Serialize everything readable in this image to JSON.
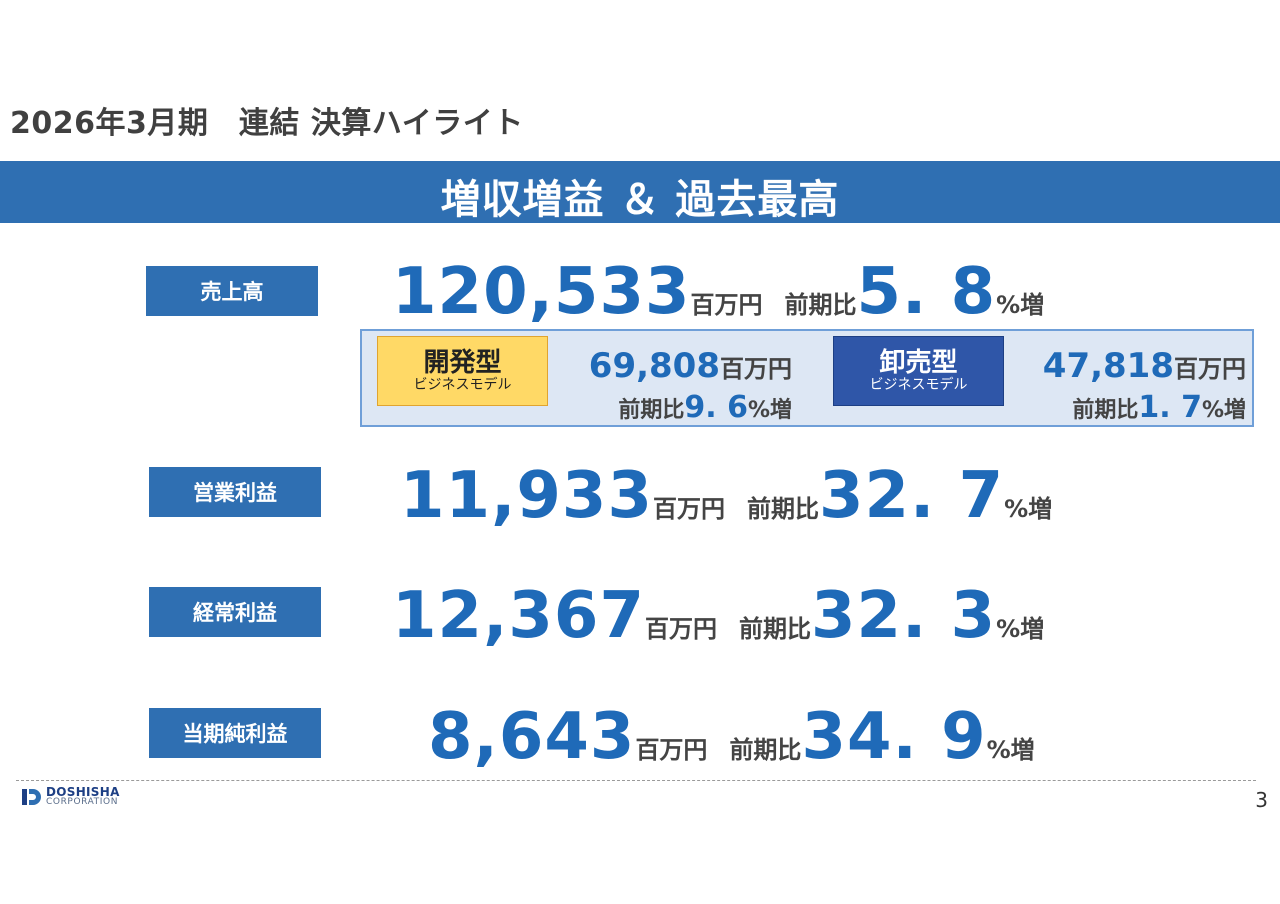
{
  "page_title": "2026年3月期　連結 決算ハイライト",
  "banner": "増収増益 ＆ 過去最高",
  "metrics": [
    {
      "label": "売上高",
      "value": "120,533",
      "unit": "百万円",
      "cmp_label": "前期比",
      "pct": "5. 8",
      "suffix": "%増"
    },
    {
      "label": "営業利益",
      "value": "11,933",
      "unit": "百万円",
      "cmp_label": "前期比",
      "pct": "32. 7",
      "suffix": "%増"
    },
    {
      "label": "経常利益",
      "value": "12,367",
      "unit": "百万円",
      "cmp_label": "前期比",
      "pct": "32. 3",
      "suffix": "%増"
    },
    {
      "label": "当期純利益",
      "value": "8,643",
      "unit": "百万円",
      "cmp_label": "前期比",
      "pct": "34. 9",
      "suffix": "%増"
    }
  ],
  "segments": [
    {
      "title": "開発型",
      "subtitle": "ビジネスモデル",
      "value": "69,808",
      "unit": "百万円",
      "cmp_label": "前期比",
      "pct": "9. 6",
      "suffix": "%増"
    },
    {
      "title": "卸売型",
      "subtitle": "ビジネスモデル",
      "value": "47,818",
      "unit": "百万円",
      "cmp_label": "前期比",
      "pct": "1. 7",
      "suffix": "%増"
    }
  ],
  "logo": {
    "line1": "DOSHISHA",
    "line2": "CORPORATION"
  },
  "page_number": "3",
  "colors": {
    "banner": "#2f6fb2",
    "accent_text": "#1f6ab8",
    "dev_tag": "#ffd966",
    "wholesale_tag": "#2f56a8",
    "panel_bg": "#dde7f4"
  }
}
